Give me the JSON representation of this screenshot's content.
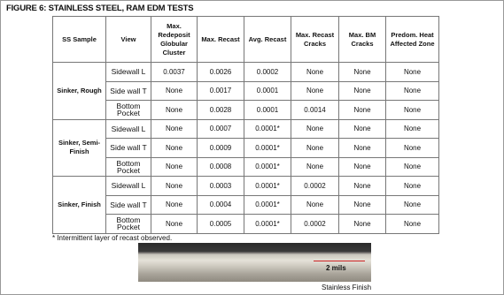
{
  "title": "FIGURE 6: STAINLESS STEEL, RAM EDM TESTS",
  "table": {
    "header": [
      "SS Sample",
      "View",
      "Max. Redeposit Globular Cluster",
      "Max. Recast",
      "Avg. Recast",
      "Max. Recast Cracks",
      "Max. BM Cracks",
      "Predom. Heat Affected Zone"
    ],
    "groups": [
      {
        "sample": "Sinker, Rough",
        "rows": [
          {
            "view": "Sidewall L",
            "cells": [
              "0.0037",
              "0.0026",
              "0.0002",
              "None",
              "None",
              "None"
            ]
          },
          {
            "view": "Side wall T",
            "cells": [
              "None",
              "0.0017",
              "0.0001",
              "None",
              "None",
              "None"
            ]
          },
          {
            "view": "Bottom Pocket",
            "cells": [
              "None",
              "0.0028",
              "0.0001",
              "0.0014",
              "None",
              "None"
            ]
          }
        ]
      },
      {
        "sample": "Sinker, Semi-Finish",
        "rows": [
          {
            "view": "Sidewall L",
            "cells": [
              "None",
              "0.0007",
              "0.0001*",
              "None",
              "None",
              "None"
            ]
          },
          {
            "view": "Side wall T",
            "cells": [
              "None",
              "0.0009",
              "0.0001*",
              "None",
              "None",
              "None"
            ]
          },
          {
            "view": "Bottom Pocket",
            "cells": [
              "None",
              "0.0008",
              "0.0001*",
              "None",
              "None",
              "None"
            ]
          }
        ]
      },
      {
        "sample": "Sinker, Finish",
        "rows": [
          {
            "view": "Sidewall L",
            "cells": [
              "None",
              "0.0003",
              "0.0001*",
              "0.0002",
              "None",
              "None"
            ]
          },
          {
            "view": "Side wall T",
            "cells": [
              "None",
              "0.0004",
              "0.0001*",
              "None",
              "None",
              "None"
            ]
          },
          {
            "view": "Bottom Pocket",
            "cells": [
              "None",
              "0.0005",
              "0.0001*",
              "0.0002",
              "None",
              "None"
            ]
          }
        ]
      }
    ]
  },
  "footnote": "* Intermittent layer of recast observed.",
  "photo": {
    "scale_label": "2 mils",
    "caption": "Stainless Finish"
  }
}
